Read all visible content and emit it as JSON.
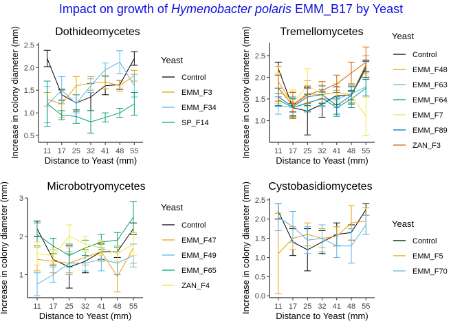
{
  "title": {
    "prefix": "Impact on growth of ",
    "species": "Hymenobacter polaris",
    "suffix": " EMM_B17 by Yeast"
  },
  "chart_data": [
    {
      "type": "line",
      "title": "Dothideomycetes",
      "xlabel": "Distance to Yeast (mm)",
      "ylabel": "Increase in colony diameter (mm)",
      "x": [
        11,
        17,
        25,
        32,
        41,
        48,
        55
      ],
      "ylim": [
        0.35,
        2.55
      ],
      "yticks": [
        0.5,
        1.0,
        1.5,
        2.0,
        2.5
      ],
      "ytick_labels": [
        "0.5",
        "1.0",
        "1.5",
        "2.0",
        "2.5"
      ],
      "legend_title": "Yeast",
      "series": [
        {
          "name": "Control",
          "color": "#000000",
          "values": [
            2.2,
            1.4,
            1.22,
            1.35,
            1.6,
            1.62,
            2.2
          ],
          "errors": [
            0.18,
            0.12,
            0.18,
            0.3,
            0.2,
            0.1,
            0.15
          ]
        },
        {
          "name": "EMM_F3",
          "color": "#e69f00",
          "values": [
            1.3,
            1.2,
            1.6,
            1.65,
            1.68,
            1.6,
            1.82
          ],
          "errors": [
            0.15,
            0.3,
            0.2,
            0.15,
            0.15,
            0.12,
            0.12
          ]
        },
        {
          "name": "EMM_F34",
          "color": "#56b4e9",
          "values": [
            1.18,
            1.5,
            1.2,
            1.6,
            1.95,
            2.12,
            1.6
          ],
          "errors": [
            0.4,
            0.3,
            0.2,
            0.15,
            0.15,
            0.25,
            0.25
          ]
        },
        {
          "name": "SP_F14",
          "color": "#009e73",
          "values": [
            1.2,
            0.95,
            0.92,
            0.8,
            0.9,
            1.0,
            1.2
          ],
          "errors": [
            0.5,
            0.1,
            0.15,
            0.25,
            0.1,
            0.1,
            0.25
          ]
        }
      ]
    },
    {
      "type": "line",
      "title": "Tremellomycetes",
      "xlabel": "Distance to Yeast (mm)",
      "ylabel": "Increase in colony diameter (mm)",
      "x": [
        11,
        17,
        25,
        32,
        41,
        48,
        55
      ],
      "ylim": [
        0.5,
        2.8
      ],
      "yticks": [
        1.0,
        1.5,
        2.0,
        2.5
      ],
      "ytick_labels": [
        "1.0",
        "1.5",
        "2.0",
        "2.5"
      ],
      "legend_title": "Yeast",
      "series": [
        {
          "name": "Control",
          "color": "#000000",
          "values": [
            2.2,
            1.3,
            1.22,
            1.38,
            1.58,
            1.58,
            2.25
          ],
          "errors": [
            0.15,
            0.1,
            0.55,
            0.3,
            0.2,
            0.1,
            0.12
          ]
        },
        {
          "name": "EMM_F48",
          "color": "#e69f00",
          "values": [
            1.9,
            1.38,
            1.62,
            1.6,
            1.65,
            1.6,
            2.3
          ],
          "errors": [
            0.35,
            0.3,
            0.3,
            0.2,
            0.2,
            0.2,
            0.2
          ]
        },
        {
          "name": "EMM_F63",
          "color": "#56b4e9",
          "values": [
            1.35,
            1.3,
            1.42,
            1.5,
            1.5,
            1.62,
            1.78
          ],
          "errors": [
            0.2,
            0.25,
            0.2,
            0.15,
            0.2,
            0.2,
            0.2
          ]
        },
        {
          "name": "EMM_F64",
          "color": "#009e73",
          "values": [
            1.48,
            1.3,
            1.4,
            1.52,
            1.3,
            1.5,
            1.75
          ],
          "errors": [
            0.15,
            0.2,
            0.2,
            0.2,
            0.2,
            0.2,
            0.2
          ]
        },
        {
          "name": "EMM_F7",
          "color": "#f0e442",
          "values": [
            1.75,
            1.42,
            1.8,
            1.62,
            1.65,
            1.58,
            1.1
          ],
          "errors": [
            0.35,
            0.3,
            0.4,
            0.2,
            0.2,
            0.2,
            0.45
          ]
        },
        {
          "name": "EMM_F89",
          "color": "#0072b2",
          "values": [
            1.55,
            1.32,
            1.55,
            1.6,
            1.35,
            1.58,
            2.2
          ],
          "errors": [
            0.2,
            0.2,
            0.2,
            0.2,
            0.2,
            0.2,
            0.2
          ]
        },
        {
          "name": "ZAN_F3",
          "color": "#d55e00",
          "values": [
            1.75,
            1.35,
            1.6,
            1.7,
            1.85,
            2.1,
            2.35
          ],
          "errors": [
            0.3,
            0.3,
            0.2,
            0.2,
            0.2,
            0.25,
            0.35
          ]
        }
      ]
    },
    {
      "type": "line",
      "title": "Microbotryomycetes",
      "xlabel": "Distance to Yeast (mm)",
      "ylabel": "Increase in colony diameter (mm)",
      "x": [
        11,
        17,
        25,
        32,
        41,
        48,
        55
      ],
      "ylim": [
        0.4,
        3.0
      ],
      "yticks": [
        1,
        2,
        3
      ],
      "ytick_labels": [
        "1",
        "2",
        "3"
      ],
      "legend_title": "Yeast",
      "series": [
        {
          "name": "Control",
          "color": "#000000",
          "values": [
            2.2,
            1.4,
            1.2,
            1.35,
            1.6,
            1.6,
            2.2
          ],
          "errors": [
            0.2,
            0.15,
            0.55,
            0.3,
            0.2,
            0.15,
            0.15
          ]
        },
        {
          "name": "EMM_F47",
          "color": "#e69f00",
          "values": [
            1.4,
            1.35,
            1.3,
            1.45,
            1.6,
            0.95,
            1.7
          ],
          "errors": [
            0.3,
            0.3,
            0.25,
            0.2,
            0.25,
            0.4,
            0.4
          ]
        },
        {
          "name": "EMM_F49",
          "color": "#56b4e9",
          "values": [
            0.75,
            1.0,
            1.3,
            1.3,
            1.4,
            1.3,
            1.5
          ],
          "errors": [
            0.3,
            0.2,
            0.3,
            0.2,
            0.3,
            0.3,
            0.3
          ]
        },
        {
          "name": "EMM_F65",
          "color": "#009e73",
          "values": [
            2.05,
            1.75,
            1.5,
            1.7,
            1.85,
            1.9,
            2.5
          ],
          "errors": [
            0.3,
            0.2,
            0.3,
            0.2,
            0.2,
            0.2,
            0.4
          ]
        },
        {
          "name": "ZAN_F4",
          "color": "#f0e442",
          "values": [
            1.55,
            1.5,
            2.0,
            1.8,
            1.7,
            1.55,
            1.8
          ],
          "errors": [
            0.3,
            0.2,
            0.3,
            0.2,
            0.2,
            0.2,
            0.3
          ]
        }
      ]
    },
    {
      "type": "line",
      "title": "Cystobasidiomycetes",
      "xlabel": "Distance to Yeast (mm)",
      "ylabel": "Increase in colony diameter (mm)",
      "x": [
        11,
        17,
        25,
        32,
        41,
        48,
        55
      ],
      "ylim": [
        -0.05,
        2.55
      ],
      "yticks": [
        0.0,
        0.5,
        1.0,
        1.5,
        2.0,
        2.5
      ],
      "ytick_labels": [
        "0.0",
        "0.5",
        "1.0",
        "1.5",
        "2.0",
        "2.5"
      ],
      "legend_title": "Yeast",
      "series": [
        {
          "name": "Control",
          "color": "#000000",
          "values": [
            2.2,
            1.4,
            1.2,
            1.4,
            1.6,
            1.65,
            2.25
          ],
          "errors": [
            0.2,
            0.35,
            0.55,
            0.3,
            0.3,
            0.2,
            0.15
          ]
        },
        {
          "name": "EMM_F5",
          "color": "#e69f00",
          "values": [
            1.1,
            1.5,
            1.6,
            1.5,
            1.55,
            1.9,
            1.95
          ],
          "errors": [
            1.05,
            0.3,
            0.3,
            0.25,
            0.25,
            0.45,
            0.35
          ]
        },
        {
          "name": "EMM_F70",
          "color": "#56b4e9",
          "values": [
            2.05,
            1.8,
            1.45,
            1.5,
            1.3,
            1.3,
            1.85
          ],
          "errors": [
            0.35,
            0.4,
            0.35,
            0.35,
            0.3,
            0.45,
            0.25
          ]
        }
      ]
    }
  ]
}
